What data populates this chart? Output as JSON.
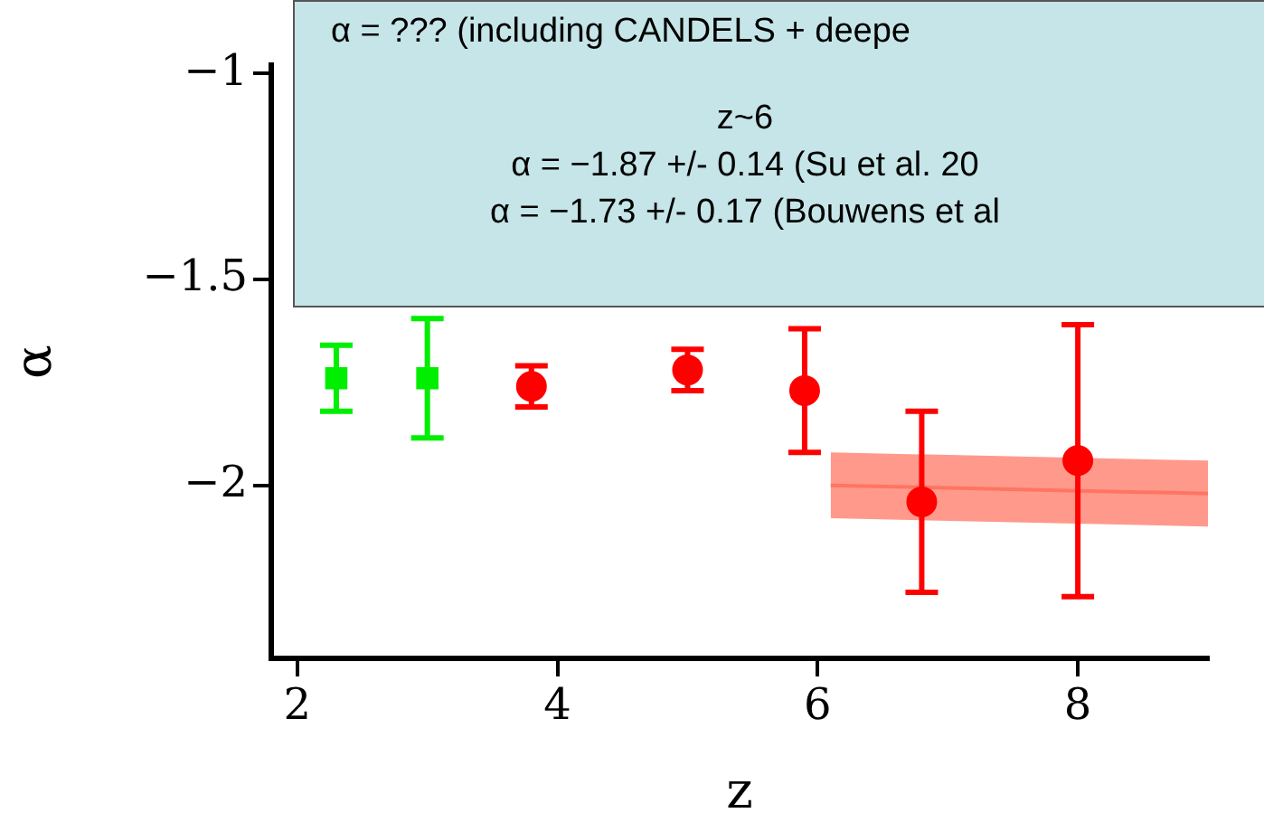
{
  "chart_data": {
    "type": "scatter",
    "xlabel": "z",
    "ylabel": "α",
    "xlim": [
      1.8,
      9.0
    ],
    "ylim": [
      -2.42,
      -0.98
    ],
    "xticks": [
      2,
      4,
      6,
      8
    ],
    "yticks": [
      {
        "value": -1,
        "label": "−1"
      },
      {
        "value": -1.5,
        "label": "−1.5"
      },
      {
        "value": -2,
        "label": "−2"
      }
    ],
    "grid": false,
    "legend": false,
    "annotations": [
      "α = ??? (including CANDELS + deepe",
      "z~6",
      "α = −1.87 +/- 0.14 (Su et al. 20",
      "α = −1.73 +/- 0.17 (Bouwens et al"
    ],
    "series": [
      {
        "color": "#00ee00",
        "marker": "square",
        "x": [
          2.3,
          3.0
        ],
        "values": [
          -1.74,
          -1.74
        ],
        "errors": [
          0.08,
          0.145
        ]
      },
      {
        "color": "#ff0000",
        "marker": "circle",
        "x": [
          3.8,
          5.0,
          5.9
        ],
        "values": [
          -1.76,
          -1.72,
          -1.77
        ],
        "errors": [
          0.05,
          0.05,
          0.15
        ]
      },
      {
        "color": "#ff0000",
        "marker": "circle",
        "x": [
          6.8,
          8.0
        ],
        "values": [
          -2.04,
          -1.94
        ],
        "errors": [
          0.22,
          0.33
        ]
      },
      {
        "type": "line",
        "color": "#ff7462",
        "x": [
          6.1,
          9.0
        ],
        "values": [
          -2.0,
          -2.02
        ],
        "lower": [
          -2.08,
          -2.1
        ],
        "upper": [
          -1.92,
          -1.94
        ]
      }
    ]
  }
}
